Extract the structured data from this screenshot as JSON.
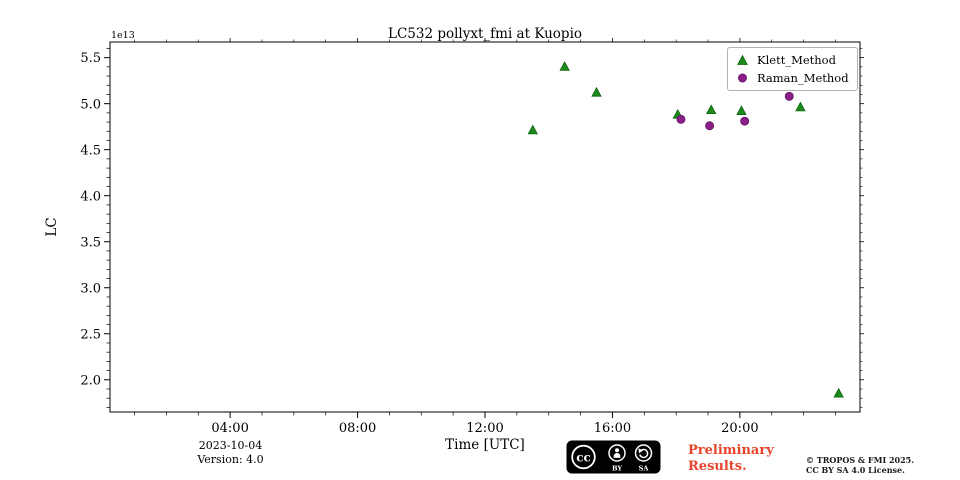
{
  "chart_data": {
    "type": "scatter",
    "title": "LC532 pollyxt_fmi at Kuopio",
    "xlabel": "Time [UTC]",
    "ylabel": "LC",
    "y_offset_text": "1e13",
    "xlim": [
      0.23,
      23.77
    ],
    "ylim": [
      1.65,
      5.67
    ],
    "x_ticks": {
      "values": [
        4,
        8,
        12,
        16,
        20
      ],
      "labels": [
        "04:00",
        "08:00",
        "12:00",
        "16:00",
        "20:00"
      ]
    },
    "y_ticks": {
      "values": [
        2.0,
        2.5,
        3.0,
        3.5,
        4.0,
        4.5,
        5.0,
        5.5
      ],
      "labels": [
        "2.0",
        "2.5",
        "3.0",
        "3.5",
        "4.0",
        "4.5",
        "5.0",
        "5.5"
      ]
    },
    "x_minor_step_hours": 1,
    "y_minor_step": 0.1,
    "grid": false,
    "legend_position": "upper right",
    "series": [
      {
        "name": "Klett_Method",
        "marker": "triangle",
        "color": "#1b8a1b",
        "edge": "#0a5c0a",
        "points": [
          [
            13.5,
            4.71
          ],
          [
            14.5,
            5.4
          ],
          [
            15.5,
            5.12
          ],
          [
            18.05,
            4.88
          ],
          [
            19.1,
            4.93
          ],
          [
            20.05,
            4.92
          ],
          [
            21.9,
            4.96
          ],
          [
            23.1,
            1.85
          ]
        ]
      },
      {
        "name": "Raman_Method",
        "marker": "circle",
        "color": "#8a1f8a",
        "edge": "#5c105c",
        "points": [
          [
            18.15,
            4.83
          ],
          [
            19.05,
            4.76
          ],
          [
            20.15,
            4.81
          ],
          [
            21.55,
            5.08
          ]
        ]
      }
    ]
  },
  "footer": {
    "date": "2023-10-04",
    "version": "Version: 4.0",
    "preliminary_line1": "Preliminary",
    "preliminary_line2": "Results.",
    "preliminary_color": "#e8442c",
    "copyright_line1": "© TROPOS & FMI 2025.",
    "copyright_line2": "CC BY SA 4.0 License.",
    "license_badge": {
      "cc": "cc",
      "by": "BY",
      "sa": "SA"
    }
  }
}
